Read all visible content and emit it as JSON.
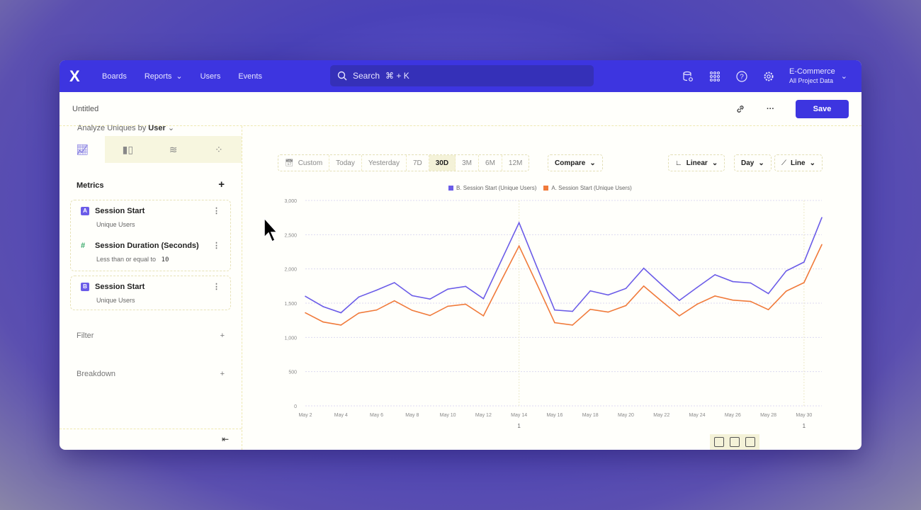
{
  "nav": {
    "logo": "X",
    "items": [
      {
        "label": "Boards"
      },
      {
        "label": "Reports",
        "dropdown": true
      },
      {
        "label": "Users"
      },
      {
        "label": "Events"
      }
    ],
    "search_placeholder": "Search",
    "search_shortcut": "⌘ + K",
    "icons": [
      "database-settings-icon",
      "apps-grid-icon",
      "help-icon",
      "settings-gear-icon"
    ],
    "project": "E-Commerce",
    "project_sub": "All Project Data"
  },
  "subheader": {
    "title": "Untitled",
    "save_label": "Save"
  },
  "sidebar": {
    "analyze_label": "Analyze Uniques by",
    "analyze_value": "User",
    "tabs": [
      "insights-icon",
      "funnels-icon",
      "flows-icon",
      "retention-icon"
    ],
    "metrics_label": "Metrics",
    "metrics": [
      {
        "badge": "A",
        "name": "Session Start",
        "sub": "Unique Users",
        "filter": {
          "name": "Session Duration (Seconds)",
          "op": "Less than or equal to",
          "value": "10"
        }
      },
      {
        "badge": "B",
        "name": "Session Start",
        "sub": "Unique Users"
      }
    ],
    "filter_label": "Filter",
    "breakdown_label": "Breakdown"
  },
  "toolbar": {
    "ranges": [
      "Custom",
      "Today",
      "Yesterday",
      "7D",
      "30D",
      "3M",
      "6M",
      "12M"
    ],
    "active_range": "30D",
    "compare": "Compare",
    "scale": "Linear",
    "interval": "Day",
    "chart_type": "Line"
  },
  "colors": {
    "accent": "#3d35e0",
    "series_b": "#6b5ce8",
    "series_a": "#f07a3a"
  },
  "chart_data": {
    "type": "line",
    "ylim": [
      0,
      3000
    ],
    "yticks": [
      "0",
      "500",
      "1,000",
      "1,500",
      "2,000",
      "2,500",
      "3,000"
    ],
    "ytick_values": [
      0,
      500,
      1000,
      1500,
      2000,
      2500,
      3000
    ],
    "grid": true,
    "legend_position": "top",
    "x": [
      "May 2",
      "May 3",
      "May 4",
      "May 5",
      "May 6",
      "May 7",
      "May 8",
      "May 9",
      "May 10",
      "May 11",
      "May 12",
      "May 13",
      "May 14",
      "May 15",
      "May 16",
      "May 17",
      "May 18",
      "May 19",
      "May 20",
      "May 21",
      "May 22",
      "May 23",
      "May 24",
      "May 25",
      "May 26",
      "May 27",
      "May 28",
      "May 29",
      "May 30",
      "May 31"
    ],
    "xtick_labels": [
      "May 2",
      "May 4",
      "May 6",
      "May 8",
      "May 10",
      "May 12",
      "May 14",
      "May 16",
      "May 18",
      "May 20",
      "May 22",
      "May 24",
      "May 26",
      "May 28",
      "May 30"
    ],
    "series": [
      {
        "name": "B. Session Start (Unique Users)",
        "color": "#6b5ce8",
        "values": [
          1600,
          1450,
          1360,
          1590,
          1690,
          1800,
          1610,
          1560,
          1705,
          1745,
          1565,
          2120,
          2675,
          2030,
          1400,
          1380,
          1680,
          1620,
          1715,
          2010,
          1770,
          1540,
          1730,
          1915,
          1815,
          1795,
          1640,
          1970,
          2100,
          2750
        ]
      },
      {
        "name": "A. Session Start (Unique Users)",
        "color": "#f07a3a",
        "values": [
          1360,
          1225,
          1180,
          1355,
          1400,
          1535,
          1395,
          1320,
          1455,
          1485,
          1315,
          1830,
          2335,
          1780,
          1215,
          1180,
          1410,
          1370,
          1465,
          1750,
          1530,
          1315,
          1485,
          1605,
          1545,
          1525,
          1405,
          1675,
          1800,
          2355
        ]
      }
    ],
    "annotations": [
      {
        "x": "May 14",
        "label": "1"
      },
      {
        "x": "May 30",
        "label": "1"
      }
    ]
  }
}
